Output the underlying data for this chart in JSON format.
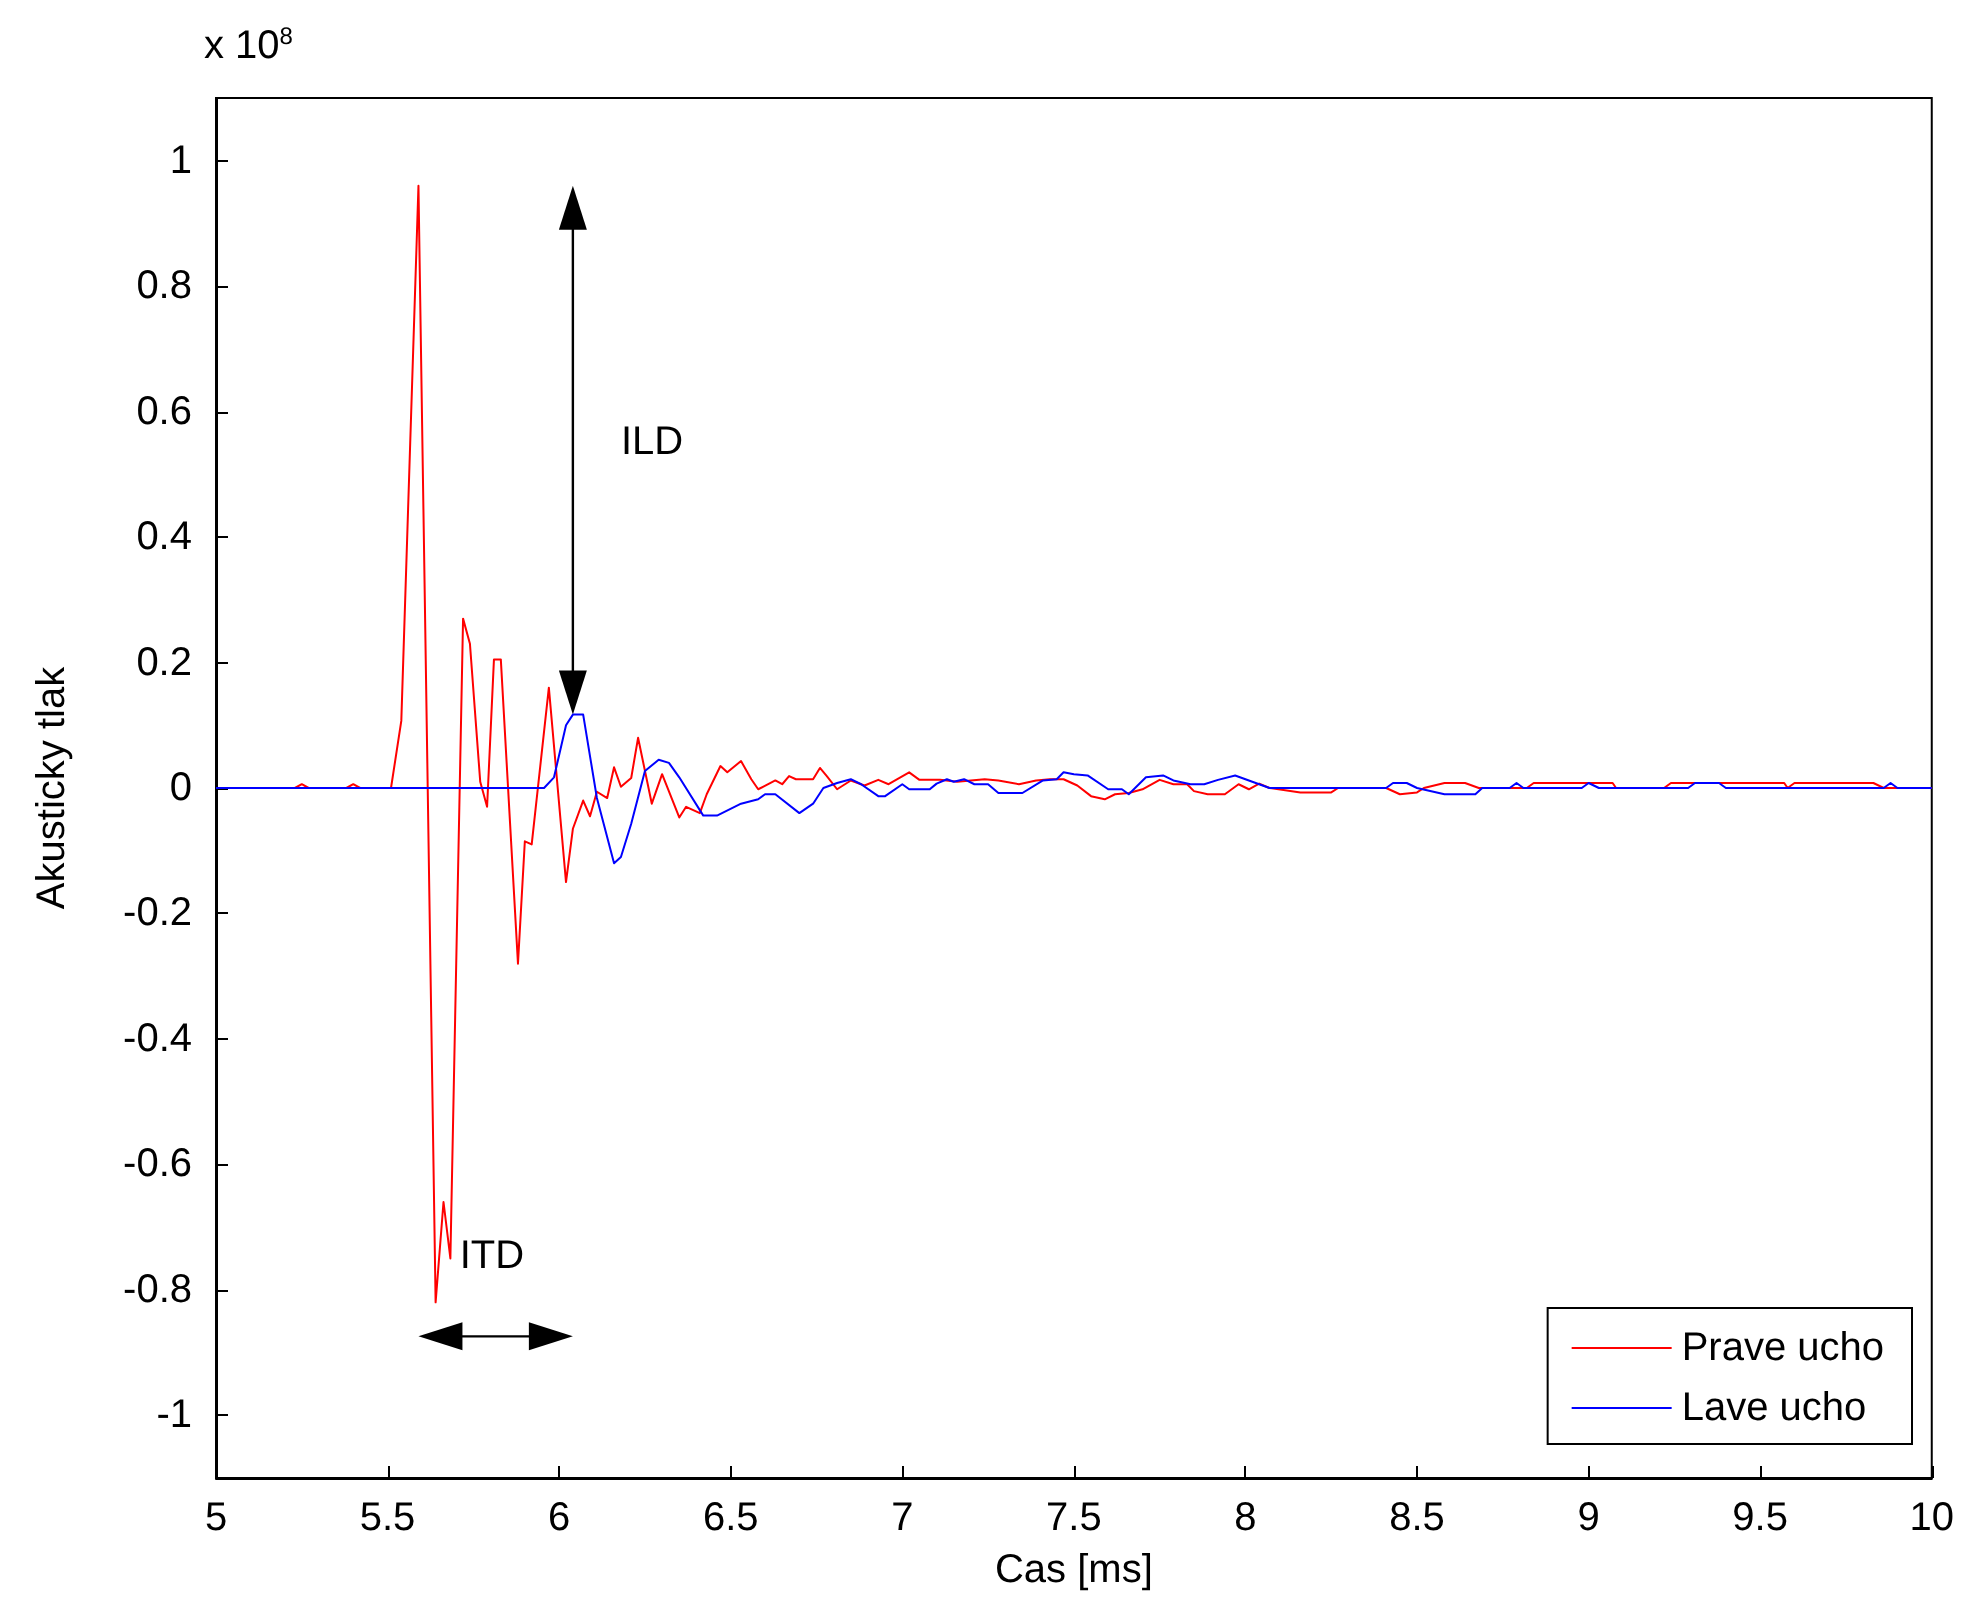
{
  "chart_data": {
    "type": "line",
    "xlabel": "Cas [ms]",
    "ylabel": "Akusticky tlak",
    "annotations": [
      "x 10$^{8}$",
      "ILD",
      "ITD"
    ],
    "xlim": [
      5,
      10
    ],
    "ylim": [
      -1.1,
      1.1
    ],
    "xticks": [
      5,
      5.5,
      6,
      6.5,
      7,
      7.5,
      8,
      8.5,
      9,
      9.5,
      10
    ],
    "yticks": [
      -1,
      -0.8,
      -0.6,
      -0.4,
      -0.2,
      0,
      0.2,
      0.4,
      0.6,
      0.8,
      1
    ],
    "grid": false,
    "legend": "bottom right",
    "series": [
      {
        "name": "Prave ucho",
        "color": "#ff0000",
        "x": [
          5,
          5.23,
          5.25,
          5.27,
          5.38,
          5.4,
          5.42,
          5.51,
          5.54,
          5.59,
          5.64,
          5.663,
          5.683,
          5.72,
          5.74,
          5.77,
          5.79,
          5.81,
          5.83,
          5.88,
          5.9,
          5.92,
          5.97,
          6.02,
          6.04,
          6.07,
          6.09,
          6.11,
          6.14,
          6.16,
          6.18,
          6.21,
          6.23,
          6.27,
          6.3,
          6.35,
          6.37,
          6.41,
          6.43,
          6.47,
          6.49,
          6.53,
          6.56,
          6.58,
          6.63,
          6.65,
          6.67,
          6.69,
          6.74,
          6.76,
          6.78,
          6.81,
          6.85,
          6.89,
          6.93,
          6.96,
          7.02,
          7.05,
          7.11,
          7.16,
          7.24,
          7.28,
          7.34,
          7.39,
          7.43,
          7.47,
          7.51,
          7.55,
          7.59,
          7.62,
          7.66,
          7.7,
          7.75,
          7.79,
          7.83,
          7.85,
          7.89,
          7.94,
          7.98,
          8.01,
          8.04,
          8.07,
          8.16,
          8.25,
          8.27,
          8.41,
          8.45,
          8.5,
          8.52,
          8.58,
          8.64,
          8.68,
          8.82,
          8.84,
          9.07,
          9.08,
          9.22,
          9.24,
          9.57,
          9.58,
          9.6,
          9.83,
          9.86,
          10
        ],
        "values": [
          0,
          0,
          0.006,
          0,
          0,
          0.006,
          0,
          0,
          0.107,
          0.96,
          -0.82,
          -0.66,
          -0.75,
          0.27,
          0.23,
          0.01,
          -0.03,
          0.205,
          0.205,
          -0.28,
          -0.085,
          -0.09,
          0.16,
          -0.15,
          -0.065,
          -0.02,
          -0.045,
          -0.006,
          -0.016,
          0.033,
          0.002,
          0.016,
          0.08,
          -0.025,
          0.022,
          -0.047,
          -0.03,
          -0.04,
          -0.01,
          0.035,
          0.025,
          0.043,
          0.014,
          -0.002,
          0.012,
          0.006,
          0.019,
          0.014,
          0.014,
          0.032,
          0.019,
          -0.002,
          0.012,
          0.004,
          0.013,
          0.006,
          0.025,
          0.013,
          0.013,
          0.01,
          0.014,
          0.012,
          0.006,
          0.012,
          0.014,
          0.014,
          0.004,
          -0.013,
          -0.018,
          -0.01,
          -0.008,
          -0.002,
          0.013,
          0.006,
          0.006,
          -0.005,
          -0.01,
          -0.01,
          0.006,
          -0.002,
          0.007,
          0,
          -0.007,
          -0.007,
          0,
          0,
          -0.01,
          -0.007,
          0,
          0.008,
          0.008,
          0,
          0,
          0.008,
          0.008,
          0,
          0,
          0.008,
          0.008,
          0,
          0.008,
          0.008,
          0,
          0
        ]
      },
      {
        "name": "Lave ucho",
        "color": "#0000ff",
        "x": [
          5,
          5.956,
          5.985,
          6.02,
          6.04,
          6.07,
          6.11,
          6.16,
          6.18,
          6.21,
          6.25,
          6.29,
          6.32,
          6.35,
          6.42,
          6.46,
          6.53,
          6.58,
          6.6,
          6.63,
          6.7,
          6.74,
          6.77,
          6.81,
          6.85,
          6.88,
          6.93,
          6.95,
          7,
          7.02,
          7.08,
          7.1,
          7.13,
          7.15,
          7.18,
          7.21,
          7.25,
          7.28,
          7.35,
          7.41,
          7.45,
          7.47,
          7.5,
          7.54,
          7.6,
          7.64,
          7.66,
          7.71,
          7.76,
          7.79,
          7.84,
          7.88,
          7.92,
          7.97,
          8.01,
          8.07,
          8.16,
          8.41,
          8.43,
          8.47,
          8.5,
          8.58,
          8.67,
          8.69,
          8.77,
          8.79,
          8.81,
          8.98,
          9,
          9.03,
          9.29,
          9.31,
          9.38,
          9.4,
          9.86,
          9.88,
          9.9,
          10
        ],
        "values": [
          0,
          0,
          0.017,
          0.1,
          0.117,
          0.117,
          -0.016,
          -0.12,
          -0.11,
          -0.057,
          0.027,
          0.045,
          0.04,
          0.017,
          -0.044,
          -0.044,
          -0.025,
          -0.018,
          -0.01,
          -0.01,
          -0.04,
          -0.025,
          0,
          0.008,
          0.014,
          0.006,
          -0.013,
          -0.013,
          0.006,
          -0.002,
          -0.002,
          0.007,
          0.014,
          0.01,
          0.014,
          0.006,
          0.006,
          -0.008,
          -0.008,
          0.012,
          0.014,
          0.025,
          0.022,
          0.02,
          -0.002,
          -0.002,
          -0.01,
          0.017,
          0.02,
          0.012,
          0.006,
          0.006,
          0.013,
          0.02,
          0.012,
          0,
          0,
          0,
          0.008,
          0.008,
          0,
          -0.01,
          -0.01,
          0,
          0,
          0.008,
          0,
          0,
          0.008,
          0,
          0,
          0.008,
          0.008,
          0,
          0,
          0.008,
          0,
          0
        ]
      }
    ]
  }
}
